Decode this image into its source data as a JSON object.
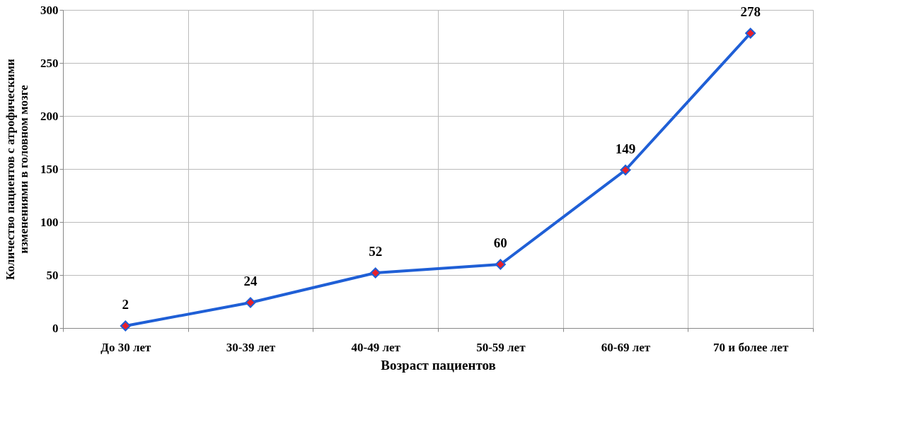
{
  "chart_data": {
    "type": "line",
    "xlabel": "Возраст пациентов",
    "ylabel": "Количество пациентов  с атрофическими\nизменениями в головном мозге",
    "categories": [
      "До 30 лет",
      "30-39 лет",
      "40-49 лет",
      "50-59 лет",
      "60-69 лет",
      "70 и более лет"
    ],
    "series": [
      {
        "color": "#1f5fd6",
        "values": [
          2,
          24,
          52,
          60,
          149,
          278
        ]
      }
    ],
    "ylim": [
      0,
      300
    ],
    "yticks": [
      0,
      50,
      100,
      150,
      200,
      250,
      300
    ],
    "grid": true,
    "marker": "diamond",
    "line_style": "solid",
    "data_labels": true
  }
}
